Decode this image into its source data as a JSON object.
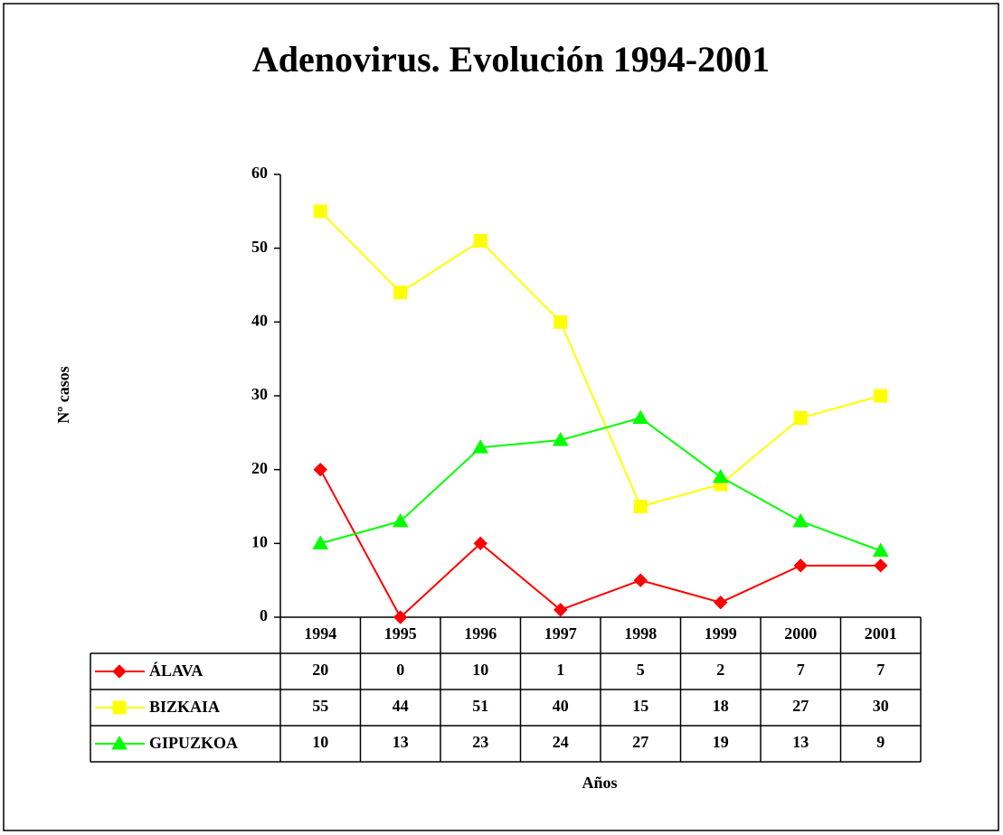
{
  "chart_data": {
    "type": "line",
    "title": "Adenovirus. Evolución 1994-2001",
    "ylabel": "Nº casos",
    "xlabel": "Años",
    "categories": [
      "1994",
      "1995",
      "1996",
      "1997",
      "1998",
      "1999",
      "2000",
      "2001"
    ],
    "series": [
      {
        "name": "ÁLAVA",
        "color": "#ff0000",
        "marker": "diamond",
        "values": [
          20,
          0,
          10,
          1,
          5,
          2,
          7,
          7
        ]
      },
      {
        "name": "BIZKAIA",
        "color": "#ffff00",
        "marker": "square",
        "values": [
          55,
          44,
          51,
          40,
          15,
          18,
          27,
          30
        ]
      },
      {
        "name": "GIPUZKOA",
        "color": "#00ff00",
        "marker": "triangle",
        "values": [
          10,
          13,
          23,
          24,
          27,
          19,
          13,
          9
        ]
      }
    ],
    "ylim": [
      0,
      60
    ],
    "yticks": [
      0,
      10,
      20,
      30,
      40,
      50,
      60
    ],
    "grid": false
  }
}
